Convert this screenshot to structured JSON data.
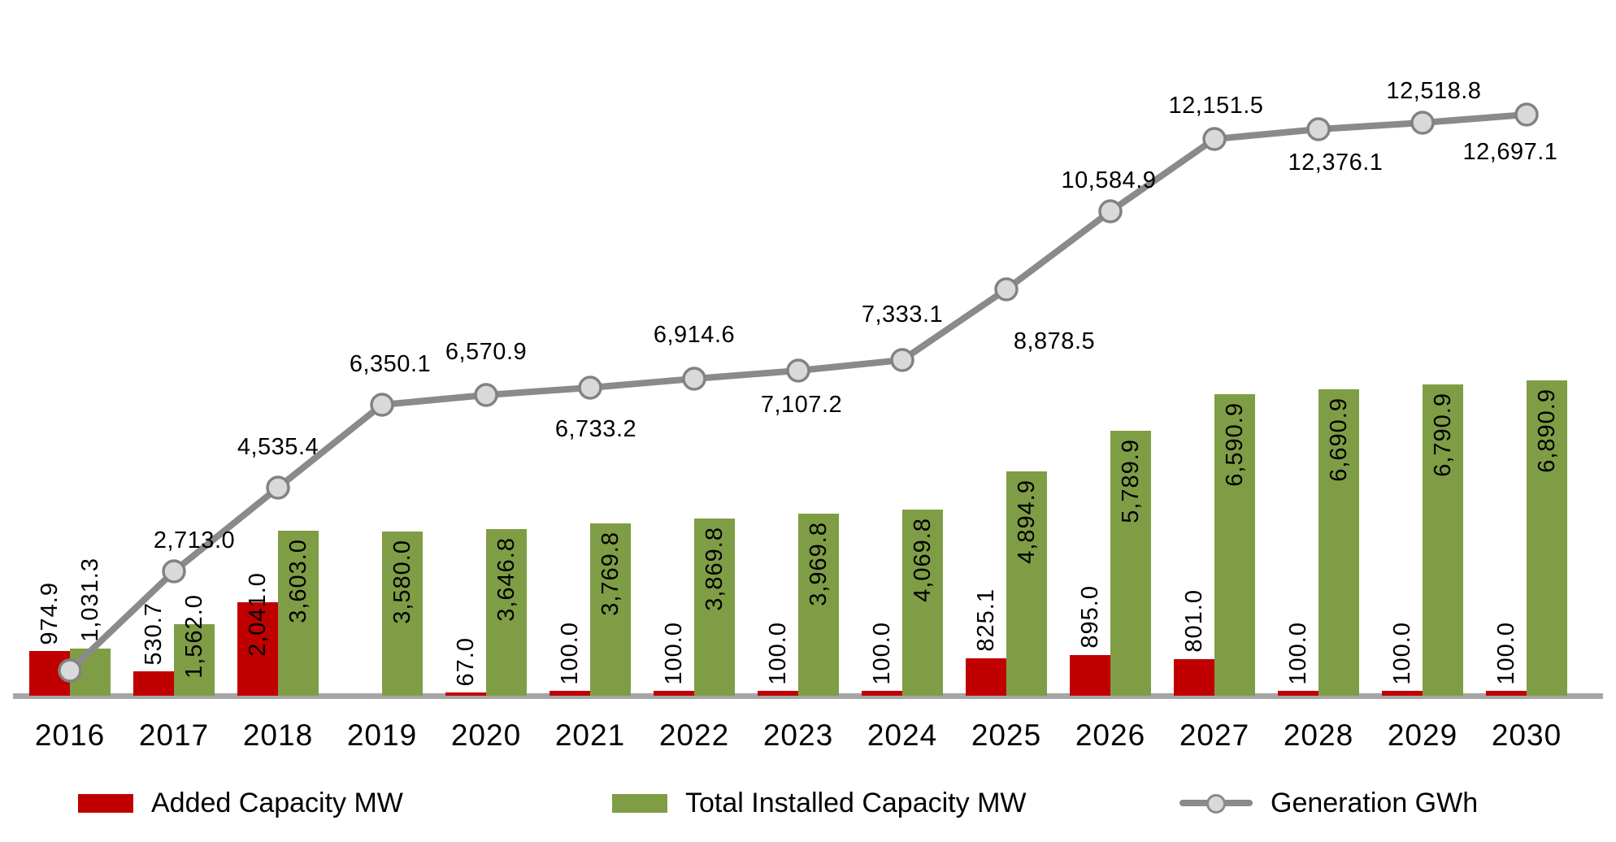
{
  "chart_data": {
    "type": "combo-bar-line",
    "title": "",
    "categories": [
      "2016",
      "2017",
      "2018",
      "2019",
      "2020",
      "2021",
      "2022",
      "2023",
      "2024",
      "2025",
      "2026",
      "2027",
      "2028",
      "2029",
      "2030"
    ],
    "series": {
      "added": {
        "name": "Added Capacity MW",
        "type": "bar",
        "color": "#c00000",
        "values": [
          974.9,
          530.7,
          2041.0,
          null,
          67.0,
          100.0,
          100.0,
          100.0,
          100.0,
          825.1,
          895.0,
          801.0,
          100.0,
          100.0,
          100.0
        ],
        "labels": [
          "974.9",
          "530.7",
          "2,041.0",
          null,
          "67.0",
          "100.0",
          "100.0",
          "100.0",
          "100.0",
          "825.1",
          "895.0",
          "801.0",
          "100.0",
          "100.0",
          "100.0"
        ]
      },
      "total": {
        "name": "Total Installed Capacity MW",
        "type": "bar",
        "color": "#7f9d45",
        "values": [
          1031.3,
          1562.0,
          3603.0,
          3580.0,
          3646.8,
          3769.8,
          3869.8,
          3969.8,
          4069.8,
          4894.9,
          5789.9,
          6590.9,
          6690.9,
          6790.9,
          6890.9
        ],
        "labels": [
          "1,031.3",
          "1,562.0",
          "3,603.0",
          "3,580.0",
          "3,646.8",
          "3,769.8",
          "3,869.8",
          "3,969.8",
          "4,069.8",
          "4,894.9",
          "5,789.9",
          "6,590.9",
          "6,690.9",
          "6,790.9",
          "6,890.9"
        ]
      },
      "generation": {
        "name": "Generation GWh",
        "type": "line",
        "color": "#8a8a8a",
        "marker_fill": "#d9d9d9",
        "marker_stroke": "#828282",
        "values": [
          null,
          2713.0,
          4535.4,
          6350.1,
          6570.9,
          6733.2,
          6914.6,
          7107.2,
          7333.1,
          8878.5,
          10584.9,
          12151.5,
          12376.1,
          12518.8,
          12697.1
        ],
        "labels": [
          null,
          "2,713.0",
          "4,535.4",
          "6,350.1",
          "6,570.9",
          "6,733.2",
          "6,914.6",
          "7,107.2",
          "7,333.1",
          "8,878.5",
          "10,584.9",
          "12,151.5",
          "12,376.1",
          "12,518.8",
          "12,697.1"
        ],
        "label_pos": [
          null,
          "above",
          "above",
          "above",
          "above",
          "below",
          "above",
          "below",
          "above",
          "below",
          "above",
          "above",
          "below",
          "above",
          "below"
        ],
        "label_dx": [
          null,
          25,
          0,
          10,
          0,
          7,
          0,
          4,
          0,
          59,
          -2,
          2,
          21,
          14,
          -20
        ],
        "label_dy": [
          null,
          -53,
          -65,
          -65,
          -68,
          36,
          -69,
          27,
          -71,
          49,
          -53,
          -56,
          26,
          -54,
          31
        ]
      }
    },
    "axis": {
      "x_labels_visible": true,
      "y_axis_visible": false,
      "ylim_hint": [
        0,
        13000
      ],
      "grid": false
    },
    "layout_hints": {
      "legend_position": "bottom",
      "value_label_rotation": "vertical",
      "gen_2016_marker_estimate": 550
    }
  },
  "legend": {
    "items": [
      {
        "label": "Added Capacity MW",
        "swatch": "bar",
        "color": "#c00000"
      },
      {
        "label": "Total Installed Capacity MW",
        "swatch": "bar",
        "color": "#7f9d45"
      },
      {
        "label": "Generation GWh",
        "swatch": "line-marker",
        "color": "#8a8a8a"
      }
    ]
  }
}
